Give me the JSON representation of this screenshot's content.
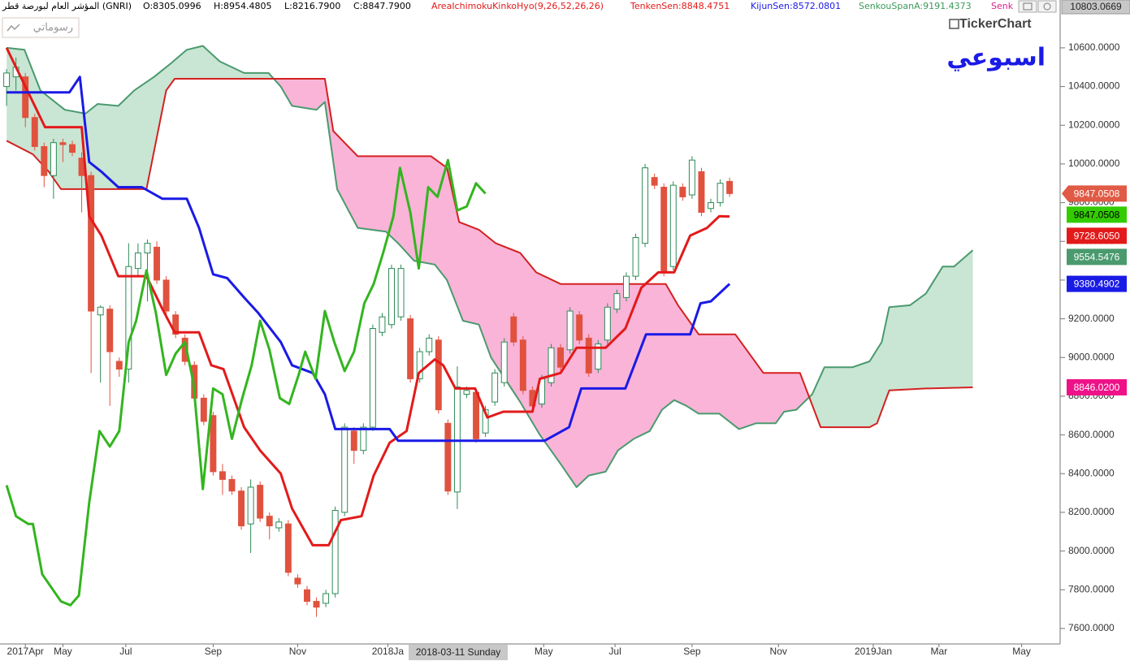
{
  "header": {
    "instrument": "المؤشر العام لبورصة قطر (GNRI)",
    "ohlc": [
      "O:8305.0996",
      "H:8954.4805",
      "L:8216.7900",
      "C:8847.7900"
    ],
    "indicators": [
      {
        "text": "AreaIchimokuKinkoHyo(9,26,52,26,26)",
        "color": "#e31a1a"
      },
      {
        "text": "TenkenSen:8848.4751",
        "color": "#e31a1a"
      },
      {
        "text": "KijunSen:8572.0801",
        "color": "#1a1ae6"
      },
      {
        "text": "SenkouSpanA:9191.4373",
        "color": "#3a9a5a"
      },
      {
        "text": "Senk",
        "color": "#e0208a"
      }
    ],
    "drawings_button": "رسوماتي",
    "logo": "TickerChart",
    "period": "اسبوعي"
  },
  "crosshair": {
    "date_label": "2018-03-11 Sunday",
    "value_label": "10803.0669"
  },
  "chart_data": {
    "type": "candlestick",
    "xlim": [
      -0.7,
      112.2
    ],
    "ylim": [
      7520,
      10780
    ],
    "grid": false,
    "xticks": [
      {
        "value": 2,
        "label": "2017Apr"
      },
      {
        "value": 6,
        "label": "May"
      },
      {
        "value": 12.7,
        "label": "Jul"
      },
      {
        "value": 22,
        "label": "Sep"
      },
      {
        "value": 31,
        "label": "Nov"
      },
      {
        "value": 40.6,
        "label": "2018Ja"
      },
      {
        "value": 57.2,
        "label": "May"
      },
      {
        "value": 64.8,
        "label": "Jul"
      },
      {
        "value": 73,
        "label": "Sep"
      },
      {
        "value": 82.2,
        "label": "Nov"
      },
      {
        "value": 92.3,
        "label": "2019Jan"
      },
      {
        "value": 99.3,
        "label": "Mar"
      },
      {
        "value": 108.1,
        "label": "May"
      }
    ],
    "yticks": [
      {
        "value": 7600,
        "label": "7600.0000"
      },
      {
        "value": 7800,
        "label": "7800.0000"
      },
      {
        "value": 8000,
        "label": "8000.0000"
      },
      {
        "value": 8200,
        "label": "8200.0000"
      },
      {
        "value": 8400,
        "label": "8400.0000"
      },
      {
        "value": 8600,
        "label": "8600.0000"
      },
      {
        "value": 8800,
        "label": "8800.0000"
      },
      {
        "value": 9000,
        "label": "9000.0000"
      },
      {
        "value": 9200,
        "label": "9200.0000"
      },
      {
        "value": 9400,
        "label": "9400.0000"
      },
      {
        "value": 9600,
        "label": "9600.0000"
      },
      {
        "value": 9800,
        "label": "9800.0000"
      },
      {
        "value": 10000,
        "label": "10000.0000"
      },
      {
        "value": 10200,
        "label": "10200.0000"
      },
      {
        "value": 10400,
        "label": "10400.0000"
      },
      {
        "value": 10600,
        "label": "10600.0000"
      }
    ],
    "candles": {
      "up_color": "#2e8b57",
      "down_color": "#e0523e",
      "last_label": "9847.0508",
      "label_color": "#e05a45",
      "label_text_color": "#ffffff",
      "x": [
        0,
        1,
        2,
        3,
        4,
        5,
        6,
        7,
        8,
        9,
        10,
        11,
        12,
        13,
        14,
        15,
        16,
        17,
        18,
        19,
        20,
        21,
        22,
        23,
        24,
        25,
        26,
        27,
        28,
        29,
        30,
        31,
        32,
        33,
        34,
        35,
        36,
        37,
        38,
        39,
        40,
        41,
        42,
        43,
        44,
        45,
        46,
        47,
        48,
        49,
        50,
        51,
        52,
        53,
        54,
        55,
        56,
        57,
        58,
        59,
        60,
        61,
        62,
        63,
        64,
        65,
        66,
        67,
        68,
        69,
        70,
        71,
        72,
        73,
        74,
        75,
        76,
        77
      ],
      "open": [
        10400,
        10450,
        10450,
        10240,
        10090,
        9940,
        10110,
        10100,
        10030,
        9940,
        9220,
        9250,
        8980,
        8940,
        9460,
        9540,
        9570,
        9400,
        9220,
        9100,
        8960,
        8790,
        8700,
        8410,
        8370,
        8310,
        8140,
        8340,
        8180,
        8120,
        8140,
        7860,
        7800,
        7740,
        7730,
        7780,
        8200,
        8620,
        8520,
        8640,
        9130,
        9170,
        9210,
        9200,
        8890,
        9030,
        9090,
        8660,
        8305.0996,
        8810,
        8820,
        8610,
        8770,
        8870,
        9210,
        9090,
        8830,
        8760,
        8870,
        9050,
        9040,
        9220,
        9100,
        8940,
        9090,
        9250,
        9310,
        9420,
        9590,
        9930,
        9880,
        9470,
        9880,
        9840,
        9960,
        9770,
        9800,
        9910
      ],
      "high": [
        10490,
        10550,
        10470,
        10260,
        10110,
        10130,
        10130,
        10120,
        10060,
        9960,
        9270,
        9270,
        9000,
        9590,
        9590,
        9610,
        9600,
        9420,
        9240,
        9120,
        8980,
        8810,
        8720,
        8450,
        8390,
        8330,
        8370,
        8360,
        8200,
        8170,
        8160,
        7880,
        7820,
        7760,
        7800,
        8230,
        8660,
        8640,
        8660,
        9170,
        9230,
        9480,
        9480,
        9220,
        9050,
        9120,
        9110,
        8680,
        8954.4805,
        8850,
        8840,
        8750,
        8940,
        9100,
        9230,
        9110,
        8850,
        8910,
        9070,
        9070,
        9260,
        9240,
        9120,
        9090,
        9280,
        9350,
        9440,
        9640,
        10000,
        9950,
        9900,
        9910,
        9900,
        10040,
        9980,
        9820,
        9920,
        9930
      ],
      "low": [
        10300,
        10380,
        10190,
        10070,
        9880,
        9820,
        10010,
        10040,
        9750,
        8920,
        8870,
        8750,
        8900,
        8870,
        9420,
        9290,
        9380,
        9200,
        9100,
        8960,
        8770,
        8650,
        8390,
        8290,
        8290,
        8110,
        7990,
        8150,
        8060,
        8100,
        7870,
        7810,
        7720,
        7660,
        7710,
        7760,
        8180,
        8450,
        8500,
        8620,
        9110,
        9150,
        9190,
        8870,
        8870,
        9010,
        8710,
        8290,
        8216.79,
        8790,
        8560,
        8590,
        8750,
        8850,
        9060,
        8810,
        8730,
        8740,
        8850,
        8930,
        9020,
        9070,
        8900,
        8920,
        9070,
        9230,
        9290,
        9400,
        9570,
        9870,
        9420,
        9450,
        9810,
        9820,
        9730,
        9750,
        9780,
        9830
      ],
      "close": [
        10470,
        10500,
        10240,
        10090,
        9940,
        10110,
        10100,
        10060,
        9940,
        9240,
        9260,
        9030,
        8940,
        9470,
        9540,
        9590,
        9400,
        9240,
        9120,
        8980,
        8790,
        8670,
        8410,
        8370,
        8310,
        8130,
        8330,
        8170,
        8130,
        8150,
        7890,
        7830,
        7740,
        7710,
        7780,
        8210,
        8640,
        8520,
        8640,
        9150,
        9210,
        9460,
        9460,
        8890,
        9030,
        9100,
        8730,
        8310,
        8847.79,
        8830,
        8580,
        8730,
        8920,
        9080,
        9080,
        8830,
        8750,
        8890,
        9050,
        8950,
        9240,
        9090,
        8920,
        9070,
        9260,
        9330,
        9420,
        9620,
        9980,
        9890,
        9440,
        9890,
        9830,
        10020,
        9750,
        9800,
        9900,
        9847.0508
      ]
    },
    "cloud_up_color": "#c9e5d3",
    "cloud_down_color": "#f9b4d8",
    "series": [
      {
        "color": "#e31a1a",
        "last_label": "9728.6050",
        "label_text_color": "#ffffff",
        "x": [
          0,
          4.1,
          8.0,
          8.8,
          10.1,
          11.9,
          14.9,
          16.6,
          17.9,
          20.5,
          21.8,
          23.1,
          25.3,
          27.0,
          29.2,
          30.4,
          32.6,
          34.3,
          35.6,
          37.8,
          39.1,
          40.8,
          42.6,
          43.9,
          45.6,
          46.5,
          47.8,
          49.9,
          51.2,
          52.9,
          56.0,
          56.8,
          59.0,
          60.7,
          63.8,
          65.9,
          67.6,
          69.4,
          71.1,
          72.8,
          74.6,
          75.9,
          77
        ],
        "values": [
          10600,
          10190,
          10190,
          9730,
          9630,
          9420,
          9420,
          9250,
          9130,
          9130,
          8960,
          8940,
          8640,
          8520,
          8400,
          8220,
          8030,
          8030,
          8160,
          8180,
          8390,
          8560,
          8620,
          8920,
          8990,
          8960,
          8840,
          8840,
          8690,
          8720,
          8720,
          8890,
          8920,
          9050,
          9050,
          9150,
          9360,
          9440,
          9440,
          9630,
          9670,
          9730,
          9728.605
        ]
      },
      {
        "color": "#1a1ae6",
        "last_label": "9380.4902",
        "label_text_color": "#ffffff",
        "x": [
          0,
          6.7,
          7.8,
          8.8,
          10.1,
          11.9,
          14.4,
          16.6,
          19.2,
          20.5,
          22.0,
          23.5,
          25.3,
          26.8,
          29.2,
          30.4,
          32.6,
          33.9,
          35.0,
          40.8,
          41.7,
          57.3,
          59.9,
          61.2,
          65.9,
          68.1,
          72.8,
          73.9,
          75.0,
          77
        ],
        "values": [
          10370,
          10370,
          10450,
          10010,
          9960,
          9880,
          9880,
          9820,
          9820,
          9670,
          9430,
          9410,
          9310,
          9230,
          9080,
          8960,
          8920,
          8810,
          8630,
          8630,
          8570,
          8570,
          8640,
          8840,
          8840,
          9120,
          9120,
          9280,
          9290,
          9380.4902
        ]
      },
      {
        "color": "#33b51f",
        "last_label": "9847.0508",
        "label_color": "#33cc00",
        "label_text_color": "#000000",
        "x": [
          0,
          1.0,
          2.3,
          2.8,
          3.8,
          5.8,
          6.8,
          7.7,
          8.8,
          9.9,
          11.0,
          12.0,
          13.0,
          13.8,
          14.9,
          15.9,
          17.0,
          18.0,
          19.0,
          19.9,
          20.9,
          22.0,
          23.0,
          24.0,
          25.1,
          26.1,
          27.0,
          28.0,
          29.1,
          30.1,
          31.1,
          31.8,
          32.9,
          33.9,
          34.9,
          36.0,
          37.0,
          38.1,
          39.1,
          40.1,
          41.2,
          41.9,
          43.0,
          43.9,
          44.9,
          45.9,
          47.0,
          48.0,
          49.0,
          50.0,
          51.0
        ],
        "values": [
          8340,
          8180,
          8140,
          8140,
          7880,
          7740,
          7720,
          7770,
          8250,
          8620,
          8540,
          8620,
          9080,
          9190,
          9450,
          9230,
          8910,
          9020,
          9080,
          8870,
          8320,
          8840,
          8810,
          8580,
          8790,
          8960,
          9190,
          9040,
          8790,
          8760,
          8910,
          9030,
          8890,
          9240,
          9080,
          8930,
          9030,
          9280,
          9380,
          9540,
          9730,
          9980,
          9750,
          9460,
          9880,
          9830,
          10020,
          9760,
          9780,
          9900,
          9847.0508
        ]
      },
      {
        "color": "#4a9a6e",
        "last_label": "9554.5476",
        "label_text_color": "#ffffff",
        "x": [
          0,
          1.9,
          3.6,
          6.2,
          8.4,
          9.7,
          11.9,
          13.6,
          15.7,
          17.5,
          19.2,
          20.9,
          22.7,
          25.3,
          27.9,
          29.2,
          30.4,
          33.0,
          33.9,
          35.2,
          37.4,
          40.4,
          41.7,
          43.4,
          45.6,
          46.9,
          48.6,
          50.3,
          51.6,
          54.7,
          56.8,
          59.0,
          60.7,
          62.0,
          63.8,
          65.1,
          66.8,
          68.5,
          69.8,
          71.1,
          72.4,
          73.7,
          75.9,
          78.0,
          79.8,
          81.9,
          82.8,
          84.1,
          85.8,
          87.1,
          90.1,
          91.9,
          93.2,
          94.0,
          96.2,
          97.9,
          99.7,
          100.9,
          102.9
        ],
        "values": [
          10600,
          10590,
          10380,
          10280,
          10260,
          10310,
          10300,
          10380,
          10450,
          10520,
          10590,
          10610,
          10530,
          10470,
          10470,
          10400,
          10300,
          10280,
          10320,
          9870,
          9670,
          9650,
          9590,
          9500,
          9480,
          9400,
          9190,
          9170,
          9000,
          8770,
          8600,
          8450,
          8330,
          8390,
          8410,
          8520,
          8580,
          8620,
          8730,
          8780,
          8750,
          8710,
          8710,
          8630,
          8660,
          8660,
          8720,
          8730,
          8810,
          8950,
          8950,
          8980,
          9080,
          9260,
          9270,
          9330,
          9470,
          9470,
          9554.5476
        ]
      },
      {
        "color": "#d42020",
        "last_label": "8846.0200",
        "label_color": "#ee1188",
        "label_text_color": "#ffffff",
        "x": [
          0,
          2.8,
          4.5,
          5.8,
          14.9,
          17.0,
          17.9,
          33.9,
          34.8,
          37.4,
          45.2,
          46.9,
          48.2,
          50.3,
          52.1,
          54.7,
          56.4,
          59.0,
          70.2,
          71.5,
          73.7,
          77.6,
          80.6,
          84.5,
          86.7,
          91.9,
          92.7,
          94.0,
          97.9,
          102.9
        ],
        "values": [
          10120,
          10050,
          9960,
          9870,
          9870,
          10380,
          10440,
          10440,
          10170,
          10040,
          10040,
          9980,
          9700,
          9660,
          9590,
          9540,
          9440,
          9380,
          9380,
          9270,
          9120,
          9120,
          8920,
          8920,
          8640,
          8640,
          8660,
          8830,
          8840,
          8846.02
        ]
      }
    ]
  }
}
